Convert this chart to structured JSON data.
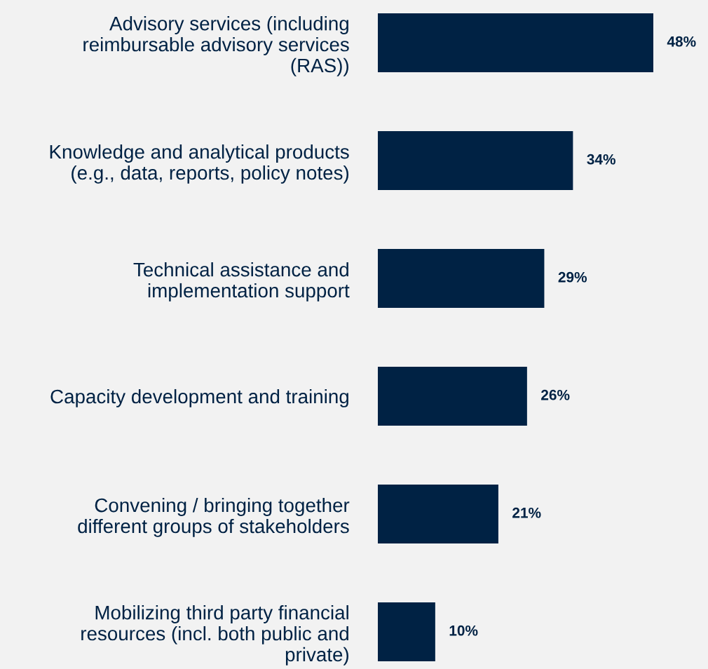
{
  "chart_data": {
    "type": "bar",
    "orientation": "horizontal",
    "categories": [
      "Advisory services (including\nreimbursable advisory services\n(RAS))",
      "Knowledge and analytical products\n(e.g., data, reports, policy notes)",
      "Technical assistance and\nimplementation support",
      "Capacity development and training",
      "Convening / bringing together\ndifferent groups of stakeholders",
      "Mobilizing third party financial\nresources (incl. both public and\nprivate)"
    ],
    "values": [
      48,
      34,
      29,
      26,
      21,
      10
    ],
    "value_labels": [
      "48%",
      "34%",
      "29%",
      "26%",
      "21%",
      "10%"
    ],
    "color": "#002244",
    "grid": false,
    "legend": false
  }
}
